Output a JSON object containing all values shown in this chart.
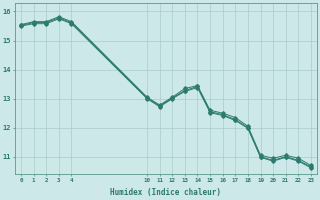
{
  "xlabel": "Humidex (Indice chaleur)",
  "ylabel": "",
  "bg_color": "#cce8e8",
  "grid_color": "#aacccc",
  "line_color": "#2d7a6e",
  "x_ticks": [
    0,
    1,
    2,
    3,
    4,
    10,
    11,
    12,
    13,
    14,
    15,
    16,
    17,
    18,
    19,
    20,
    21,
    22,
    23
  ],
  "ylim": [
    10.4,
    16.3
  ],
  "xlim": [
    -0.5,
    23.5
  ],
  "yticks": [
    11,
    12,
    13,
    14,
    15,
    16
  ],
  "series1": {
    "x": [
      0,
      1,
      2,
      3,
      4,
      10,
      11,
      12,
      13,
      14,
      15,
      16,
      17,
      18,
      19,
      20,
      21,
      22,
      23
    ],
    "y": [
      15.55,
      15.65,
      15.65,
      15.82,
      15.65,
      13.05,
      12.78,
      13.05,
      13.35,
      13.45,
      12.6,
      12.5,
      12.35,
      12.05,
      11.05,
      10.95,
      11.05,
      10.95,
      10.7
    ]
  },
  "series2": {
    "x": [
      0,
      1,
      2,
      3,
      4,
      10,
      11,
      12,
      13,
      14,
      15,
      16,
      17,
      18,
      19,
      20,
      21,
      22,
      23
    ],
    "y": [
      15.52,
      15.62,
      15.62,
      15.78,
      15.62,
      13.02,
      12.75,
      13.02,
      13.28,
      13.42,
      12.55,
      12.45,
      12.28,
      12.0,
      11.0,
      10.88,
      11.0,
      10.88,
      10.65
    ]
  },
  "series3": {
    "x": [
      0,
      1,
      2,
      3,
      4,
      10,
      11,
      12,
      13,
      14,
      15,
      16,
      17,
      18,
      19,
      20,
      21,
      22,
      23
    ],
    "y": [
      15.5,
      15.58,
      15.58,
      15.75,
      15.58,
      13.0,
      12.72,
      13.0,
      13.25,
      13.38,
      12.52,
      12.42,
      12.25,
      11.98,
      10.98,
      10.85,
      10.98,
      10.85,
      10.62
    ]
  }
}
